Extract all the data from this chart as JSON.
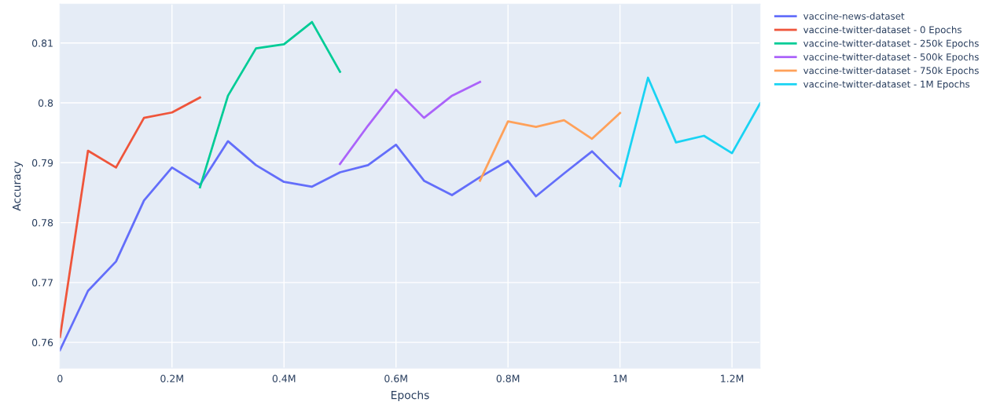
{
  "chart_data": {
    "type": "line",
    "xlabel": "Epochs",
    "ylabel": "Accuracy",
    "xlim": [
      0,
      1250000
    ],
    "ylim": [
      0.7557,
      0.8165
    ],
    "xticks": [
      0,
      {
        "value": 200000,
        "label": "0.2M"
      },
      {
        "value": 400000,
        "label": "0.4M"
      },
      {
        "value": 600000,
        "label": "0.6M"
      },
      {
        "value": 800000,
        "label": "0.8M"
      },
      {
        "value": 1000000,
        "label": "1M"
      },
      {
        "value": 1200000,
        "label": "1.2M"
      }
    ],
    "yticks": [
      0.76,
      0.77,
      0.78,
      0.79,
      0.8,
      0.81
    ],
    "grid": true,
    "legend": "top right",
    "marker": "none",
    "line_style": "solid",
    "series": [
      {
        "name": "vaccine-news-dataset",
        "color": "#636efa",
        "x": [
          0,
          50000,
          100000,
          150000,
          200000,
          250000,
          300000,
          350000,
          400000,
          450000,
          500000,
          550000,
          600000,
          650000,
          700000,
          750000,
          800000,
          850000,
          900000,
          950000,
          1000000
        ],
        "values": [
          0.7587,
          0.7686,
          0.7735,
          0.7837,
          0.7892,
          0.7863,
          0.7936,
          0.7896,
          0.7868,
          0.786,
          0.7884,
          0.7896,
          0.793,
          0.787,
          0.7846,
          0.7876,
          0.7903,
          0.7844,
          0.7882,
          0.7919,
          0.7873
        ]
      },
      {
        "name": "vaccine-twitter-dataset - 0 Epochs",
        "color": "#ef553b",
        "x": [
          0,
          50000,
          100000,
          150000,
          200000,
          250000
        ],
        "values": [
          0.7609,
          0.792,
          0.7892,
          0.7975,
          0.7984,
          0.8009
        ]
      },
      {
        "name": "vaccine-twitter-dataset - 250k Epochs",
        "color": "#00cc96",
        "x": [
          250000,
          300000,
          350000,
          400000,
          450000,
          500000
        ],
        "values": [
          0.7859,
          0.8012,
          0.8091,
          0.8098,
          0.8135,
          0.8052
        ]
      },
      {
        "name": "vaccine-twitter-dataset - 500k Epochs",
        "color": "#ab63fa",
        "x": [
          500000,
          550000,
          600000,
          650000,
          700000,
          750000
        ],
        "values": [
          0.7898,
          0.7962,
          0.8022,
          0.7975,
          0.8012,
          0.8035
        ]
      },
      {
        "name": "vaccine-twitter-dataset - 750k Epochs",
        "color": "#ffa15a",
        "x": [
          750000,
          800000,
          850000,
          900000,
          950000,
          1000000
        ],
        "values": [
          0.787,
          0.7969,
          0.796,
          0.7971,
          0.794,
          0.7983
        ]
      },
      {
        "name": "vaccine-twitter-dataset - 1M Epochs",
        "color": "#19d3f3",
        "x": [
          1000000,
          1050000,
          1100000,
          1150000,
          1200000,
          1250000
        ],
        "values": [
          0.7861,
          0.8042,
          0.7934,
          0.7945,
          0.7916,
          0.7999
        ]
      }
    ]
  }
}
